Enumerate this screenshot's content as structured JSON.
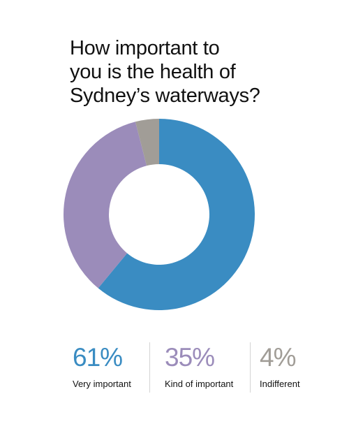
{
  "title": "How important to\nyou is the health of\nSydney’s waterways?",
  "chart_data": {
    "type": "pie",
    "style": "donut",
    "title": "How important to you is the health of Sydney’s waterways?",
    "categories": [
      "Very important",
      "Kind of important",
      "Indifferent"
    ],
    "values": [
      61,
      35,
      4
    ],
    "unit": "%",
    "colors": [
      "#3a8cc2",
      "#9b8cba",
      "#a19d97"
    ],
    "labels": [
      "61%",
      "35%",
      "4%"
    ],
    "legend": "bottom"
  }
}
